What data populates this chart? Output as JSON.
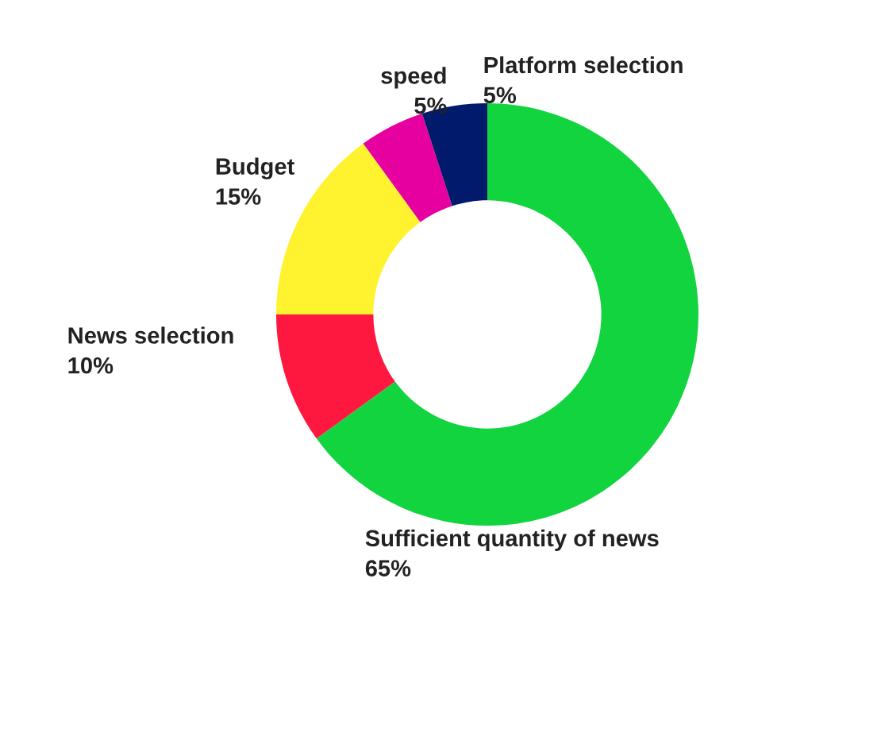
{
  "chart_data": {
    "type": "donut",
    "categories": [
      "Sufficient quantity of news",
      "News selection",
      "Budget",
      "speed",
      "Platform selection"
    ],
    "values": [
      65,
      10,
      15,
      5,
      5
    ],
    "value_labels": [
      "65%",
      "10%",
      "15%",
      "5%",
      "5%"
    ],
    "colors": [
      "#12d43f",
      "#fe173f",
      "#fff22e",
      "#e6009f",
      "#021a6b"
    ],
    "legend": false
  }
}
